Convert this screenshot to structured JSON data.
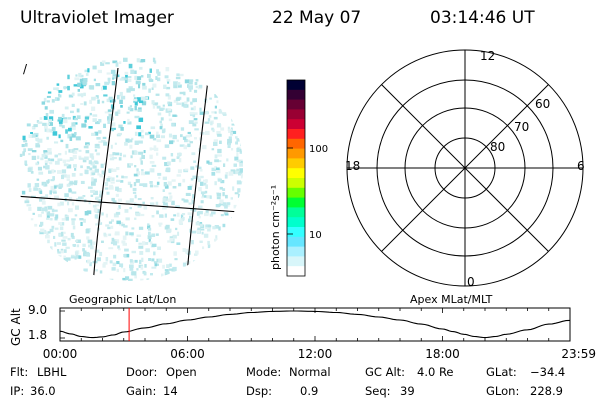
{
  "header": {
    "instrument": "Ultraviolet Imager",
    "date": "22 May 07",
    "time": "03:14:46 UT"
  },
  "image_panel": {
    "corner_mark": "/",
    "caption": "Geographic Lat/Lon"
  },
  "colorbar": {
    "label": "photon cm⁻²s⁻¹",
    "tick_labels": [
      "100",
      "10"
    ],
    "colors": [
      "#000033",
      "#330033",
      "#660033",
      "#990033",
      "#cc0033",
      "#ff2020",
      "#ff6600",
      "#ff9900",
      "#ffcc00",
      "#ffff00",
      "#ccff00",
      "#66ff00",
      "#00ff33",
      "#00ff99",
      "#00ffcc",
      "#33ffff",
      "#66e6ff",
      "#aaf0ff",
      "#d8f6fa",
      "#ffffff"
    ]
  },
  "polar_plot": {
    "caption": "Apex MLat/MLT",
    "mlt_labels": {
      "top": "12",
      "left": "18",
      "right": "6",
      "bottom": "0"
    },
    "lat_labels": [
      "60",
      "70",
      "80"
    ]
  },
  "chart_data": {
    "type": "line",
    "title": "",
    "ylabel": "GC Alt",
    "y_tick_labels": [
      "9.0",
      "1.8"
    ],
    "ylim": [
      1.8,
      9.0
    ],
    "xlim_hours": [
      0,
      24
    ],
    "x_tick_labels": [
      "00:00",
      "06:00",
      "12:00",
      "18:00",
      "23:59"
    ],
    "x_hours": [
      0,
      0.5,
      1.0,
      1.5,
      2.0,
      2.5,
      3,
      4,
      5,
      6,
      7,
      8,
      9,
      10,
      11,
      12,
      13,
      14,
      15,
      16,
      17,
      18,
      18.5,
      19,
      19.5,
      20,
      20.5,
      21,
      22,
      23,
      23.98
    ],
    "y_values": [
      3.6,
      2.9,
      2.2,
      1.9,
      2.1,
      2.6,
      3.4,
      4.5,
      5.6,
      6.6,
      7.4,
      8.1,
      8.6,
      8.9,
      9.0,
      8.9,
      8.6,
      8.1,
      7.4,
      6.6,
      5.5,
      4.2,
      3.5,
      2.8,
      2.2,
      1.9,
      2.2,
      2.8,
      4.0,
      5.5,
      6.5
    ],
    "current_time_hours": 3.25,
    "current_time_color": "#ff0000"
  },
  "info": {
    "row1": [
      {
        "key": "Flt:",
        "value": "LBHL"
      },
      {
        "key": "Door:",
        "value": "Open"
      },
      {
        "key": "Mode:",
        "value": "Normal"
      },
      {
        "key": "GC Alt:",
        "value": "4.0 Re"
      },
      {
        "key": "GLat:",
        "value": "−34.4"
      }
    ],
    "row2": [
      {
        "key": "IP:",
        "value": "36.0"
      },
      {
        "key": "Gain:",
        "value": "14"
      },
      {
        "key": "Dsp:",
        "value": "0.9"
      },
      {
        "key": "Seq:",
        "value": "39"
      },
      {
        "key": "GLon:",
        "value": "228.9"
      }
    ]
  }
}
